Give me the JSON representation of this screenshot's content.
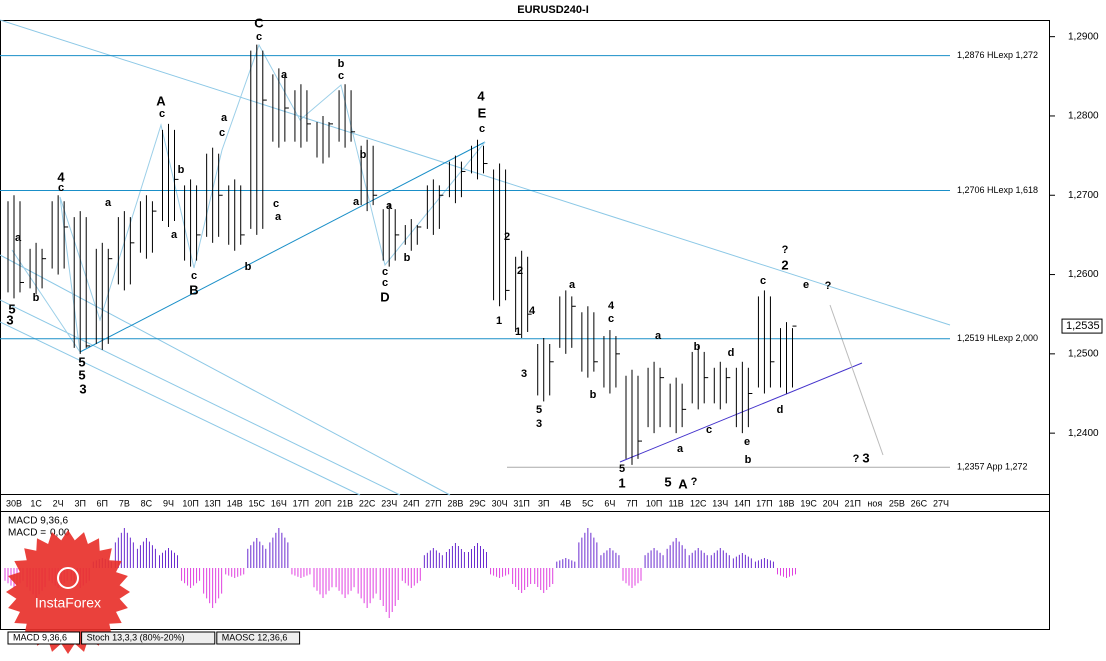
{
  "chart_data": {
    "type": "ohlc",
    "title": "EURUSD240-I",
    "categories": [
      "30В",
      "1С",
      "2Ч",
      "3П",
      "6П",
      "7В",
      "8С",
      "9Ч",
      "10П",
      "13П",
      "14В",
      "15С",
      "16Ч",
      "17П",
      "20П",
      "21В",
      "22С",
      "23Ч",
      "24П",
      "27П",
      "28В",
      "29С",
      "30Ч",
      "31П",
      "3П",
      "4В",
      "5С",
      "6Ч",
      "7П",
      "10П",
      "11В",
      "12С",
      "13Ч",
      "14П",
      "17П",
      "18В",
      "19С",
      "20Ч",
      "21П",
      "ноя",
      "25В",
      "26С",
      "27Ч"
    ],
    "high": [
      1.27,
      1.264,
      1.27,
      1.268,
      1.264,
      1.268,
      1.27,
      1.279,
      1.272,
      1.276,
      1.272,
      1.289,
      1.286,
      1.284,
      1.28,
      1.284,
      1.277,
      1.269,
      1.267,
      1.272,
      1.275,
      1.277,
      1.274,
      1.263,
      1.252,
      1.258,
      1.256,
      1.253,
      1.248,
      1.249,
      1.247,
      1.251,
      1.249,
      1.249,
      1.258,
      1.254,
      null,
      null,
      null,
      null,
      null,
      null,
      null
    ],
    "low": [
      1.257,
      1.2575,
      1.26,
      1.25,
      1.2505,
      1.258,
      1.262,
      1.266,
      1.261,
      1.264,
      1.263,
      1.265,
      1.276,
      1.276,
      1.274,
      1.276,
      1.268,
      1.261,
      1.263,
      1.265,
      1.269,
      1.272,
      1.256,
      1.252,
      1.244,
      1.25,
      1.247,
      1.245,
      1.236,
      1.24,
      1.24,
      1.243,
      1.243,
      1.24,
      1.245,
      1.245,
      null,
      null,
      null,
      null,
      null,
      null,
      null
    ],
    "close": [
      1.259,
      1.262,
      1.266,
      1.251,
      1.262,
      1.264,
      1.268,
      1.272,
      1.265,
      1.27,
      1.265,
      1.282,
      1.281,
      1.279,
      1.279,
      1.278,
      1.27,
      1.265,
      1.266,
      1.27,
      1.273,
      1.274,
      1.258,
      1.255,
      1.249,
      1.256,
      1.249,
      1.25,
      1.239,
      1.247,
      1.243,
      1.247,
      1.247,
      1.245,
      1.249,
      1.2535,
      null,
      null,
      null,
      null,
      null,
      null,
      null
    ],
    "color": "#000000",
    "ylim": [
      1.2322,
      1.2921
    ],
    "yticks": [
      {
        "value": 1.29,
        "label": "1,2900"
      },
      {
        "value": 1.28,
        "label": "1,2800"
      },
      {
        "value": 1.27,
        "label": "1,2700"
      },
      {
        "value": 1.26,
        "label": "1,2600"
      },
      {
        "value": 1.25,
        "label": "1,2500"
      },
      {
        "value": 1.24,
        "label": "1,2400"
      }
    ],
    "last_price": {
      "value": 1.2535,
      "label": "1,2535"
    },
    "levels": [
      {
        "value": 1.2876,
        "label": "1,2876 HLexp 1,272",
        "color": "#1a8fc8"
      },
      {
        "value": 1.2706,
        "label": "1,2706 HLexp 1,618",
        "color": "#1a8fc8"
      },
      {
        "value": 1.2519,
        "label": "1,2519 HLexp 2,000",
        "color": "#1a8fc8"
      },
      {
        "value": 1.2357,
        "label": "1,2357 App 1,272",
        "color": "#aaaaaa"
      }
    ],
    "annotations": [
      {
        "text": "C",
        "color": "#3322cc"
      },
      {
        "text": "c",
        "color": "#3322cc"
      },
      {
        "text": "A",
        "color": "#3322cc"
      },
      {
        "text": "c",
        "color": "#3322cc"
      },
      {
        "text": "4",
        "color": "#1a9ad6"
      },
      {
        "text": "E",
        "color": "#3322cc"
      },
      {
        "text": "c",
        "color": "#3322cc"
      },
      {
        "text": "b",
        "color": "#3322cc"
      },
      {
        "text": "c",
        "color": "#000000"
      },
      {
        "text": "a",
        "color": "#000000"
      },
      {
        "text": "b",
        "color": "#3322cc"
      },
      {
        "text": "a",
        "color": "#3322cc"
      },
      {
        "text": "c",
        "color": "#3322cc"
      },
      {
        "text": "B",
        "color": "#3322cc"
      },
      {
        "text": "a",
        "color": "#3322cc"
      },
      {
        "text": "c",
        "color": "#000000"
      },
      {
        "text": "a",
        "color": "#3322cc"
      },
      {
        "text": "c",
        "color": "#000000"
      },
      {
        "text": "b",
        "color": "#3322cc"
      },
      {
        "text": "c",
        "color": "#3322cc"
      },
      {
        "text": "c",
        "color": "#3322cc"
      },
      {
        "text": "D",
        "color": "#3322cc"
      },
      {
        "text": "a",
        "color": "#3322cc"
      },
      {
        "text": "b",
        "color": "#3322cc"
      },
      {
        "text": "b",
        "color": "#000000"
      },
      {
        "text": "a",
        "color": "#000000"
      },
      {
        "text": "4",
        "color": "#3322cc"
      },
      {
        "text": "c",
        "color": "#000000"
      },
      {
        "text": "a",
        "color": "#3322cc"
      },
      {
        "text": "a",
        "color": "#000000"
      },
      {
        "text": "b",
        "color": "#000000"
      },
      {
        "text": "5",
        "color": "#3322cc"
      },
      {
        "text": "3",
        "color": "#3322cc"
      },
      {
        "text": "5",
        "color": "#3322cc"
      },
      {
        "text": "5",
        "color": "#3322cc"
      },
      {
        "text": "3",
        "color": "#1a9ad6"
      },
      {
        "text": "2",
        "color": "#000000"
      },
      {
        "text": "1",
        "color": "#000000"
      },
      {
        "text": "2",
        "color": "#000000"
      },
      {
        "text": "4",
        "color": "#000000"
      },
      {
        "text": "1",
        "color": "#000000"
      },
      {
        "text": "3",
        "color": "#000000"
      },
      {
        "text": "5",
        "color": "#000000"
      },
      {
        "text": "3",
        "color": "#000000"
      },
      {
        "text": "a",
        "color": "#000000"
      },
      {
        "text": "4",
        "color": "#000000"
      },
      {
        "text": "c",
        "color": "#000000"
      },
      {
        "text": "b",
        "color": "#000000"
      },
      {
        "text": "5",
        "color": "#000000"
      },
      {
        "text": "1",
        "color": "#3322cc"
      },
      {
        "text": "5",
        "color": "#1a9ad6"
      },
      {
        "text": "A",
        "color": "#3322cc"
      },
      {
        "text": "?",
        "color": "#3322cc"
      },
      {
        "text": "a",
        "color": "#000000"
      },
      {
        "text": "a",
        "color": "#000000"
      },
      {
        "text": "b",
        "color": "#000000"
      },
      {
        "text": "c",
        "color": "#000000"
      },
      {
        "text": "d",
        "color": "#000000"
      },
      {
        "text": "e",
        "color": "#000000"
      },
      {
        "text": "b",
        "color": "#000000"
      },
      {
        "text": "c",
        "color": "#000000"
      },
      {
        "text": "?",
        "color": "#3322cc"
      },
      {
        "text": "2",
        "color": "#3322cc"
      },
      {
        "text": "e",
        "color": "#aaaaaa"
      },
      {
        "text": "?",
        "color": "#3322cc"
      },
      {
        "text": "d",
        "color": "#aaaaaa"
      },
      {
        "text": "?",
        "color": "#3322cc"
      },
      {
        "text": "3",
        "color": "#3322cc"
      }
    ],
    "macd": {
      "title": "MACD 9,36,6",
      "current_prefix": "MACD =",
      "current": {
        "value": 0,
        "label": "0,00"
      },
      "values": [
        -2,
        -3,
        -2,
        -2,
        1,
        4,
        3,
        2,
        -2,
        -4,
        -1,
        3,
        4,
        -1,
        -3,
        -3,
        -4,
        -5,
        -2,
        2,
        2.5,
        2.5,
        -1,
        -2.5,
        -2.5,
        1,
        4,
        2,
        -2,
        2,
        3,
        2,
        2,
        1.5,
        1,
        -1,
        null,
        null,
        null,
        null,
        null,
        null,
        null
      ],
      "ylim": [
        -6.2,
        5.6
      ],
      "positive_color": "#6a2bd0",
      "negative_color": "#e040e0"
    },
    "tabs": [
      "MACD 9,36,6",
      "Stoch 13,3,3 (80%-20%)",
      "MAOSC 12,36,6"
    ],
    "logo": "InstaForex"
  }
}
